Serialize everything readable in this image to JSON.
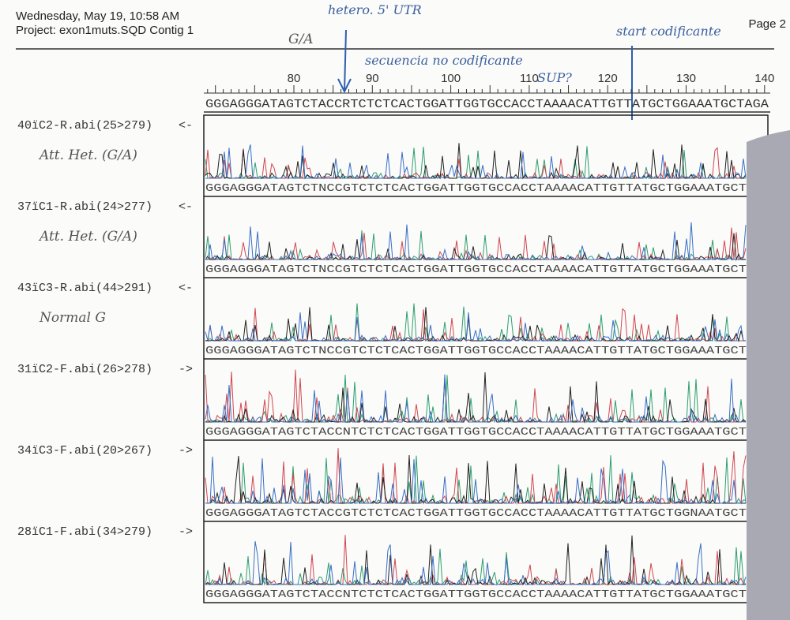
{
  "header": {
    "date": "Wednesday, May 19, 10:58 AM",
    "project": "Project: exon1muts.SQD Contig 1",
    "page": "Page 2"
  },
  "annotations": {
    "allele": "G/A",
    "utr": "hetero. 5' UTR",
    "start": "start codificante",
    "noncoding": "secuencia no codificante",
    "sup": "SUP?"
  },
  "ruler": {
    "ticks": [
      80,
      90,
      100,
      110,
      120,
      130,
      140
    ]
  },
  "consensus": "GGGAGGGATAGTCTACCRTCTCTCACTGGATTGGTGCCACCTAAAACATTGTTATGCTGGAAATGCTAGA",
  "tracks": [
    {
      "name": "40ïC2-R.abi(25>279)",
      "direction": "<-",
      "note": "Att. Het. (G/A)",
      "sequence": "GGGAGGGATAGTCTNCCGTCTCTCACTGGATTGGTGCCACCTAAAACATTGTTATGCTGGAAATGCT"
    },
    {
      "name": "37ïC1-R.abi(24>277)",
      "direction": "<-",
      "note": "Att. Het. (G/A)",
      "sequence": "GGGAGGGATAGTCTNCCGTCTCTCACTGGATTGGTGCCACCTAAAACATTGTTATGCTGGAAATGCT"
    },
    {
      "name": "43ïC3-R.abi(44>291)",
      "direction": "<-",
      "note": "Normal G",
      "sequence": "GGGAGGGATAGTCTNCCGTCTCTCACTGGATTGGTGCCACCTAAAACATTGTTATGCTGGAAATGCT"
    },
    {
      "name": "31ïC2-F.abi(26>278)",
      "direction": "->",
      "sequence": "GGGAGGGATAGTCTACCNTCTCTCACTGGATTGGTGCCACCTAAAACATTGTTATGCTGGAAATGCT"
    },
    {
      "name": "34ïC3-F.abi(20>267)",
      "direction": "->",
      "sequence": "GGGAGGGATAGTCTACCGTCTCTCACTGGATTGGTGCCACCTAAAACATTGTTATGCTGGNAATGCT"
    },
    {
      "name": "28ïC1-F.abi(34>279)",
      "direction": "->",
      "sequence": "GGGAGGGATAGTCTACCNTCTCTCACTGGATTGGTGCCACCTAAAACATTGTTATGCTGGAAATGCT"
    }
  ]
}
